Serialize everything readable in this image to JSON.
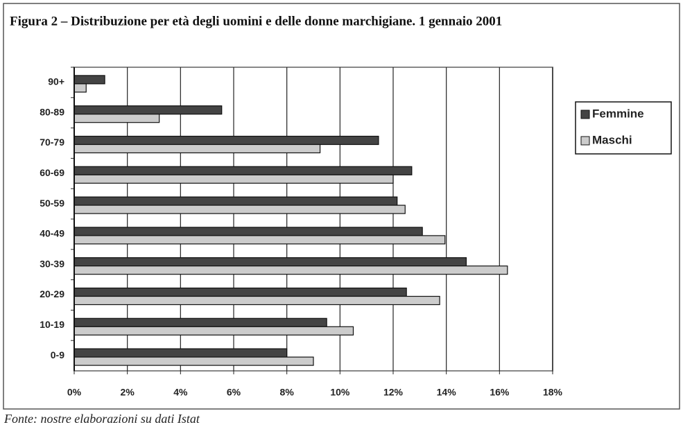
{
  "chart_data": {
    "type": "barh",
    "title": "Figura 2 – Distribuzione per età degli uomini e delle donne marchigiane. 1 gennaio 2001",
    "source": "Fonte: nostre elaborazioni su dati Istat",
    "categories": [
      "90+",
      "80-89",
      "70-79",
      "60-69",
      "50-59",
      "40-49",
      "30-39",
      "20-29",
      "10-19",
      "0-9"
    ],
    "series": [
      {
        "name": "Femmine",
        "color": "#444444",
        "values": [
          1.15,
          5.55,
          11.45,
          12.7,
          12.15,
          13.1,
          14.75,
          12.5,
          9.5,
          8.0
        ]
      },
      {
        "name": "Maschi",
        "color": "#cccccc",
        "values": [
          0.45,
          3.2,
          9.25,
          12.0,
          12.45,
          13.95,
          16.3,
          13.75,
          10.5,
          9.0
        ]
      }
    ],
    "xlim": [
      0,
      18
    ],
    "xticks": [
      {
        "value": 0,
        "label": "0%"
      },
      {
        "value": 2,
        "label": "2%"
      },
      {
        "value": 4,
        "label": "4%"
      },
      {
        "value": 6,
        "label": "6%"
      },
      {
        "value": 8,
        "label": "8%"
      },
      {
        "value": 10,
        "label": "10%"
      },
      {
        "value": 12,
        "label": "12%"
      },
      {
        "value": 14,
        "label": "14%"
      },
      {
        "value": 16,
        "label": "16%"
      },
      {
        "value": 18,
        "label": "18%"
      }
    ],
    "grid": true,
    "legend": "right"
  }
}
